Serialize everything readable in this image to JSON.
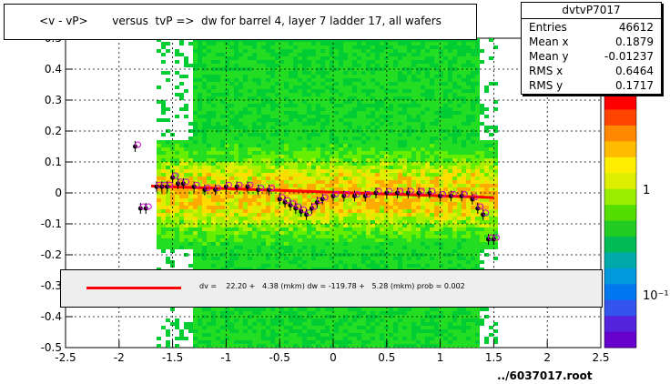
{
  "title": "<v - vP>       versus  tvP =>  dw for barrel 4, layer 7 ladder 17, all wafers",
  "stats": {
    "name": "dvtvP7017",
    "rows": [
      {
        "label": "Entries",
        "value": "46612"
      },
      {
        "label": "Mean x",
        "value": "0.1879"
      },
      {
        "label": "Mean y",
        "value": "-0.01237"
      },
      {
        "label": "RMS x",
        "value": "0.6464"
      },
      {
        "label": "RMS y",
        "value": "0.1717"
      }
    ]
  },
  "fit_text": "dv =    22.20 +   4.38 (mkm) dw = -119.78 +   5.28 (mkm) prob = 0.002",
  "filename": "../6037017.root",
  "colors": {
    "fit_line": "#ff0000",
    "profile_points": "#000000",
    "open_markers": "#cc00cc",
    "fit_box": "#eeeeee"
  },
  "chart_data": {
    "type": "heatmap",
    "xlim": [
      -2.5,
      2.5
    ],
    "ylim": [
      -0.5,
      0.5
    ],
    "x_ticks": [
      "-2.5",
      "-2",
      "-1.5",
      "-1",
      "-0.5",
      "0",
      "0.5",
      "1",
      "1.5",
      "2",
      "2.5"
    ],
    "y_ticks": [
      "-0.5",
      "-0.4",
      "-0.3",
      "-0.2",
      "-0.1",
      "0",
      "0.1",
      "0.2",
      "0.3",
      "0.4",
      "0.5"
    ],
    "colorbar_ticks": [
      "1",
      "10⁻¹"
    ],
    "grid": true,
    "fit_line": {
      "x": [
        -1.7,
        1.5
      ],
      "y": [
        0.022,
        -0.015
      ]
    },
    "profile": {
      "x": [
        -1.85,
        -1.8,
        -1.75,
        -1.65,
        -1.6,
        -1.55,
        -1.5,
        -1.45,
        -1.4,
        -1.3,
        -1.2,
        -1.1,
        -1.0,
        -0.9,
        -0.8,
        -0.7,
        -0.6,
        -0.5,
        -0.45,
        -0.4,
        -0.35,
        -0.3,
        -0.25,
        -0.2,
        -0.15,
        -0.1,
        0.0,
        0.1,
        0.2,
        0.3,
        0.4,
        0.5,
        0.6,
        0.7,
        0.8,
        0.9,
        1.0,
        1.1,
        1.2,
        1.3,
        1.35,
        1.4,
        1.45,
        1.5
      ],
      "y": [
        0.15,
        -0.05,
        -0.05,
        0.02,
        0.02,
        0.02,
        0.05,
        0.03,
        0.03,
        0.02,
        0.01,
        0.01,
        0.02,
        0.02,
        0.02,
        0.01,
        0.01,
        -0.02,
        -0.03,
        -0.04,
        -0.05,
        -0.06,
        -0.07,
        -0.05,
        -0.03,
        -0.02,
        -0.01,
        -0.01,
        -0.01,
        -0.01,
        0.0,
        0.0,
        0.0,
        0.0,
        0.0,
        0.0,
        -0.01,
        -0.01,
        -0.01,
        -0.02,
        -0.05,
        -0.07,
        -0.15,
        -0.15
      ]
    }
  }
}
